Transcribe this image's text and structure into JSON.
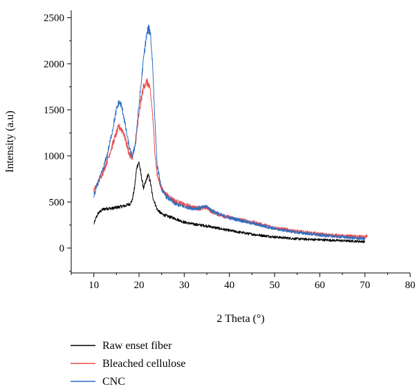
{
  "chart_data": {
    "type": "line",
    "title": "",
    "xlabel": "2 Theta (°)",
    "ylabel": "Intensity (a.u)",
    "xlim": [
      5,
      80
    ],
    "ylim": [
      -270,
      2580
    ],
    "xticks": [
      10,
      20,
      30,
      40,
      50,
      60,
      70,
      80
    ],
    "yticks": [
      0,
      500,
      1000,
      1500,
      2000,
      2500
    ],
    "grid": false,
    "legend_position": "bottom-left",
    "series": [
      {
        "name": "Raw enset fiber",
        "color": "#000000",
        "noise": 25,
        "x": [
          10,
          10.5,
          11,
          12,
          13,
          14,
          15,
          16,
          17,
          18,
          18.5,
          19,
          19.5,
          20,
          20.5,
          21,
          21.5,
          22,
          22.5,
          23,
          24,
          25,
          26,
          28,
          30,
          32,
          35,
          38,
          40,
          45,
          50,
          55,
          60,
          65,
          70
        ],
        "y": [
          260,
          330,
          380,
          420,
          430,
          430,
          440,
          450,
          460,
          480,
          520,
          650,
          880,
          930,
          780,
          650,
          720,
          800,
          720,
          560,
          420,
          370,
          350,
          320,
          280,
          260,
          240,
          210,
          190,
          150,
          120,
          100,
          90,
          80,
          70
        ]
      },
      {
        "name": "Bleached cellulose",
        "color": "#e84c4c",
        "noise": 35,
        "x": [
          10,
          11,
          12,
          13,
          14,
          15,
          15.5,
          16,
          16.5,
          17,
          17.5,
          18,
          18.5,
          19,
          19.5,
          20,
          20.5,
          21,
          21.5,
          22,
          22.5,
          23,
          23.5,
          24,
          25,
          26,
          28,
          30,
          32,
          34,
          35,
          36,
          38,
          40,
          45,
          50,
          55,
          60,
          65,
          70,
          70.5
        ],
        "y": [
          620,
          720,
          820,
          950,
          1100,
          1250,
          1310,
          1300,
          1260,
          1180,
          1080,
          1000,
          990,
          1060,
          1250,
          1450,
          1620,
          1750,
          1800,
          1790,
          1700,
          1450,
          1050,
          800,
          640,
          580,
          510,
          470,
          440,
          430,
          440,
          400,
          360,
          330,
          280,
          220,
          180,
          150,
          130,
          120,
          130
        ]
      },
      {
        "name": "CNC",
        "color": "#2d6fc2",
        "noise": 30,
        "x": [
          10,
          11,
          12,
          13,
          14,
          15,
          15.5,
          16,
          16.5,
          17,
          17.5,
          18,
          18.5,
          19,
          19.5,
          20,
          20.5,
          21,
          21.5,
          22,
          22.5,
          23,
          23.5,
          24,
          25,
          26,
          28,
          30,
          32,
          34,
          35,
          36,
          38,
          40,
          45,
          50,
          55,
          60,
          65,
          70
        ],
        "y": [
          560,
          720,
          850,
          1020,
          1250,
          1500,
          1580,
          1560,
          1460,
          1320,
          1180,
          1060,
          1000,
          1080,
          1300,
          1550,
          1800,
          2050,
          2250,
          2380,
          2350,
          2000,
          1400,
          900,
          640,
          560,
          480,
          450,
          430,
          440,
          450,
          410,
          360,
          330,
          270,
          210,
          170,
          140,
          120,
          100
        ]
      }
    ]
  }
}
